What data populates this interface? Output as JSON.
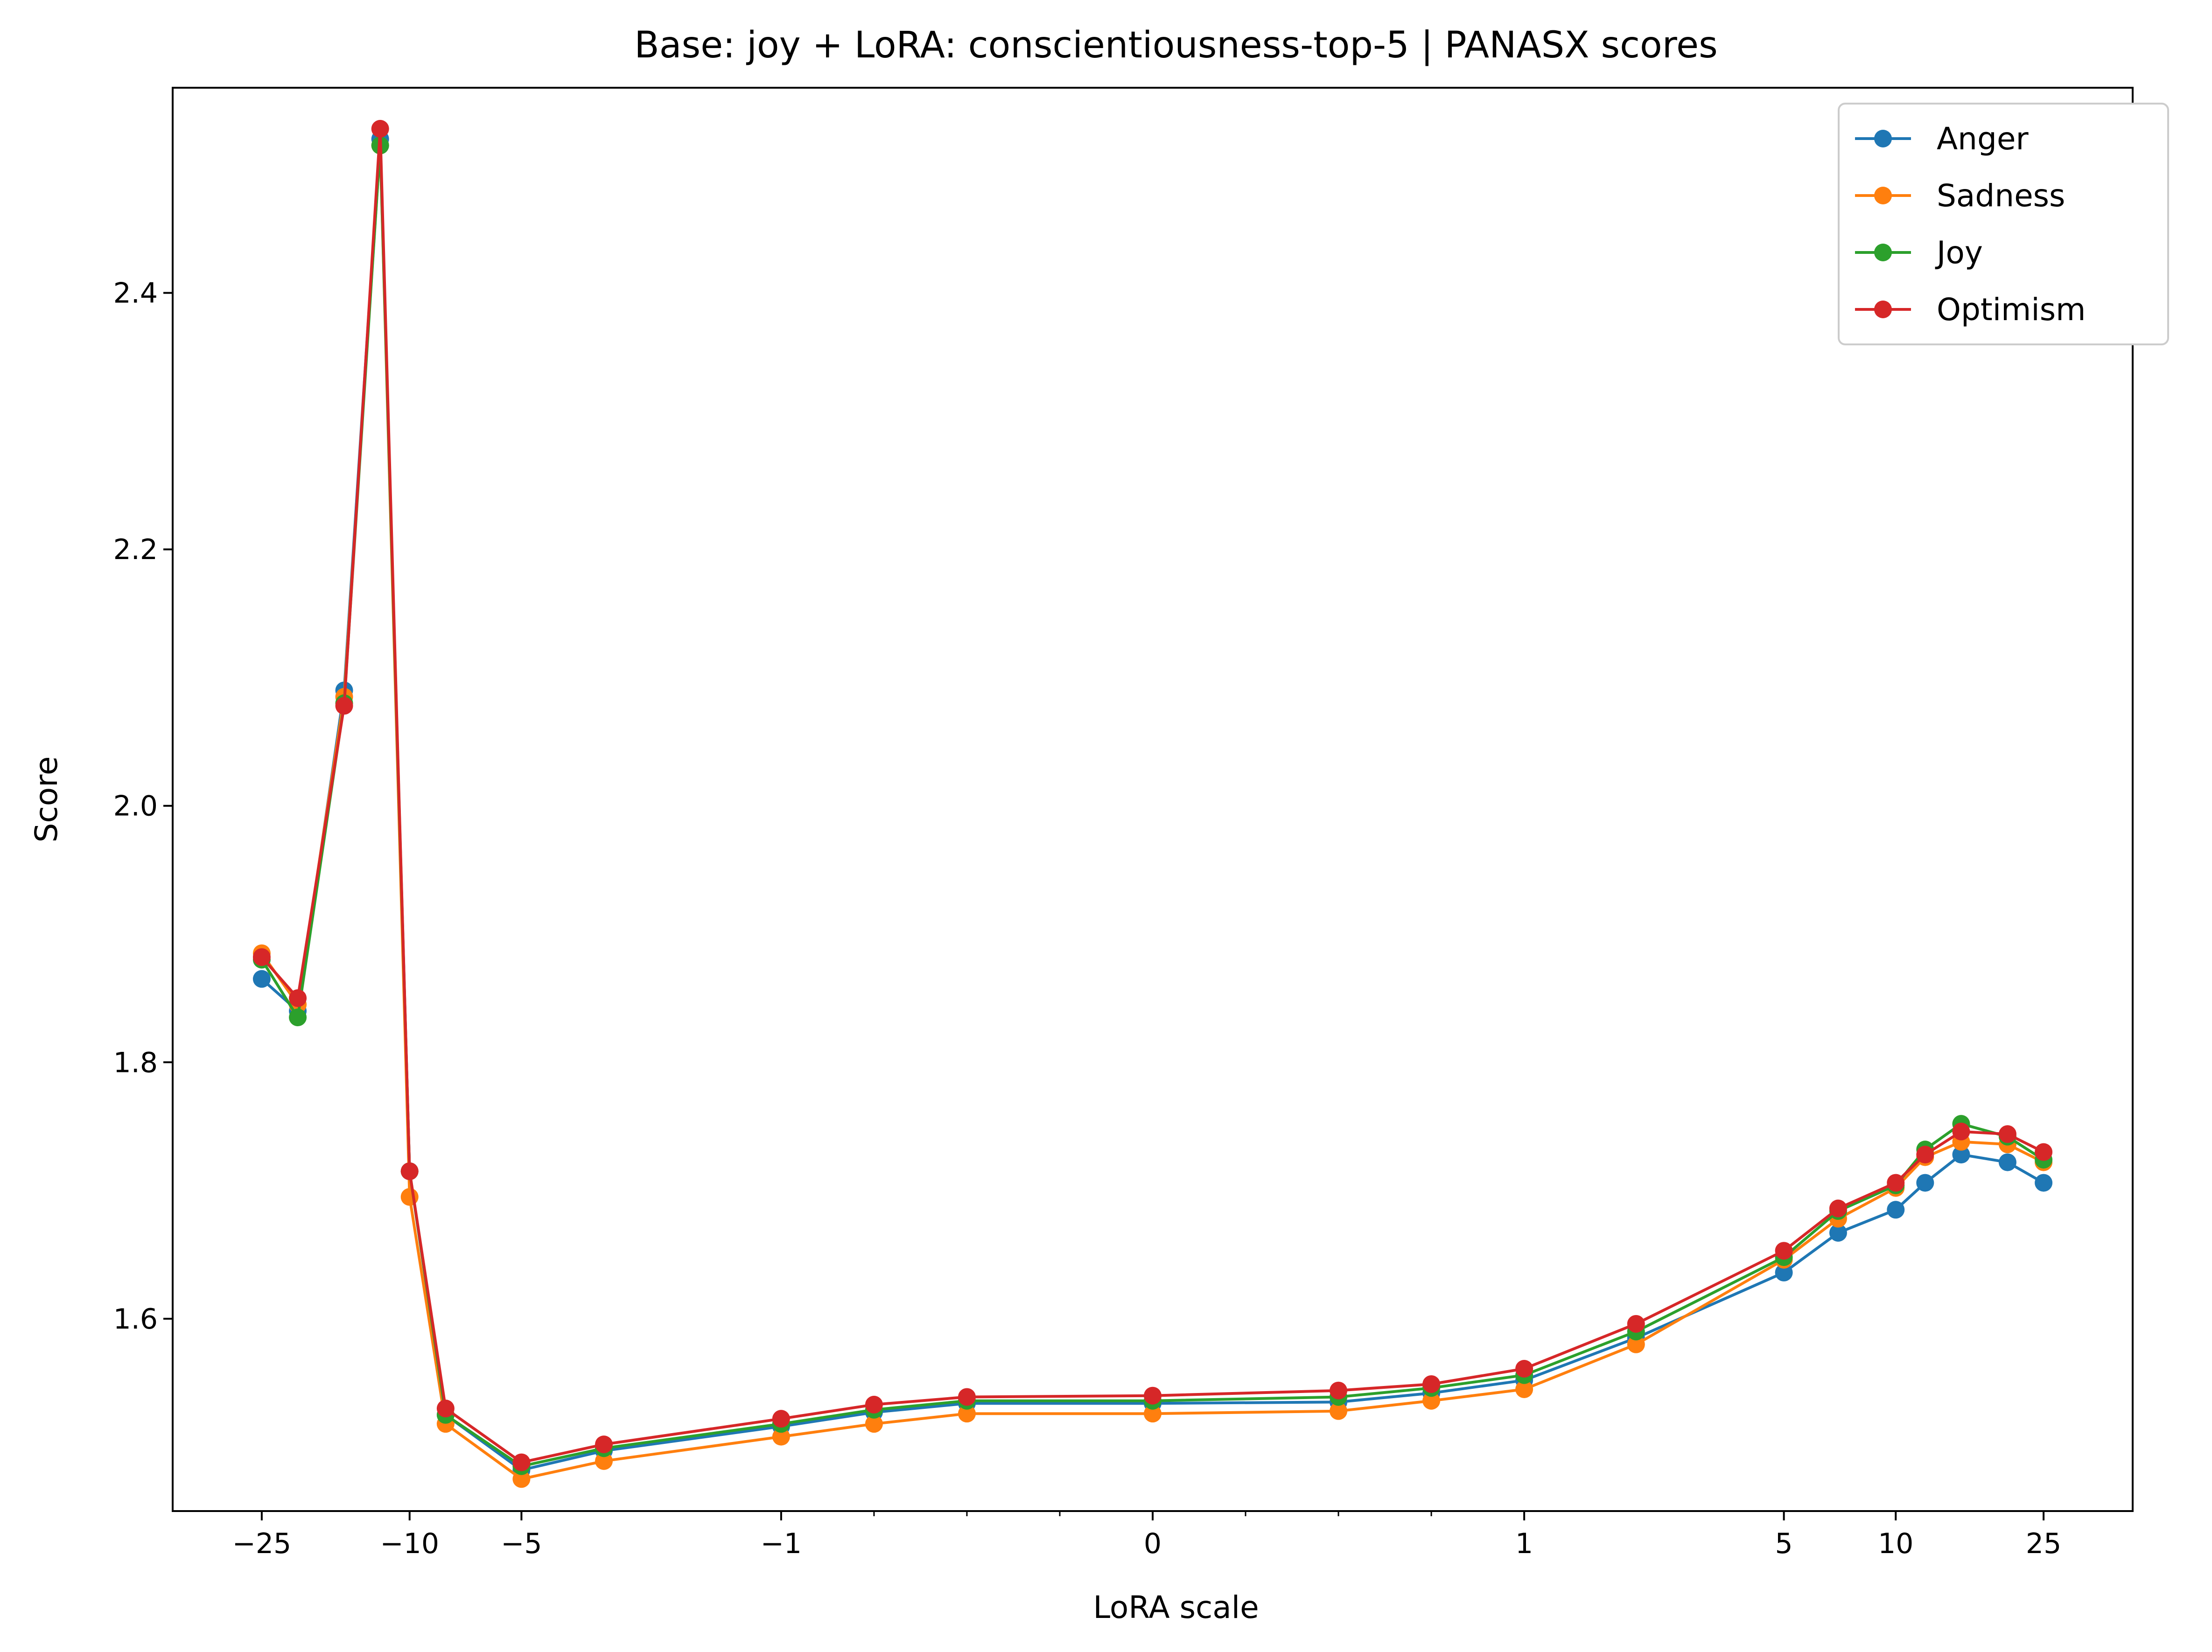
{
  "chart_data": {
    "type": "line",
    "title": "Base: joy + LoRA: conscientiousness-top-5 | PANASX scores",
    "xlabel": "LoRA scale",
    "ylabel": "Score",
    "xscale": "symlog",
    "x_ticks": [
      -25,
      -10,
      -5,
      -1,
      0,
      1,
      5,
      10,
      25
    ],
    "x_tick_labels": [
      "−25",
      "−10",
      "−5",
      "−1",
      "0",
      "1",
      "5",
      "10",
      "25"
    ],
    "y_ticks": [
      1.6,
      1.8,
      2.0,
      2.2,
      2.4
    ],
    "y_tick_labels": [
      "1.6",
      "1.8",
      "2.0",
      "2.2",
      "2.4"
    ],
    "ylim": [
      1.45,
      2.56
    ],
    "legend_position": "top-right",
    "grid": false,
    "x": [
      -25,
      -20,
      -15,
      -12,
      -10,
      -8,
      -5,
      -3,
      -1,
      -0.75,
      -0.5,
      0,
      0.5,
      0.75,
      1,
      2,
      5,
      7,
      10,
      12,
      15,
      20,
      25
    ],
    "series": [
      {
        "name": "Anger",
        "color": "#1f77b4",
        "values": [
          1.865,
          1.84,
          2.09,
          2.52,
          1.715,
          1.525,
          1.482,
          1.497,
          1.516,
          1.527,
          1.534,
          1.534,
          1.535,
          1.542,
          1.552,
          1.585,
          1.636,
          1.667,
          1.685,
          1.706,
          1.728,
          1.722,
          1.706
        ]
      },
      {
        "name": "Sadness",
        "color": "#ff7f0e",
        "values": [
          1.885,
          1.845,
          2.085,
          2.515,
          1.695,
          1.518,
          1.475,
          1.489,
          1.508,
          1.518,
          1.526,
          1.526,
          1.528,
          1.536,
          1.545,
          1.58,
          1.646,
          1.678,
          1.702,
          1.726,
          1.738,
          1.736,
          1.722
        ]
      },
      {
        "name": "Joy",
        "color": "#2ca02c",
        "values": [
          1.88,
          1.835,
          2.08,
          2.515,
          1.715,
          1.525,
          1.485,
          1.499,
          1.518,
          1.529,
          1.536,
          1.536,
          1.539,
          1.546,
          1.556,
          1.59,
          1.648,
          1.684,
          1.704,
          1.732,
          1.752,
          1.742,
          1.724
        ]
      },
      {
        "name": "Optimism",
        "color": "#d62728",
        "values": [
          1.882,
          1.85,
          2.078,
          2.528,
          1.715,
          1.53,
          1.488,
          1.502,
          1.522,
          1.533,
          1.539,
          1.54,
          1.544,
          1.549,
          1.561,
          1.596,
          1.653,
          1.686,
          1.706,
          1.728,
          1.746,
          1.744,
          1.73
        ]
      }
    ]
  }
}
